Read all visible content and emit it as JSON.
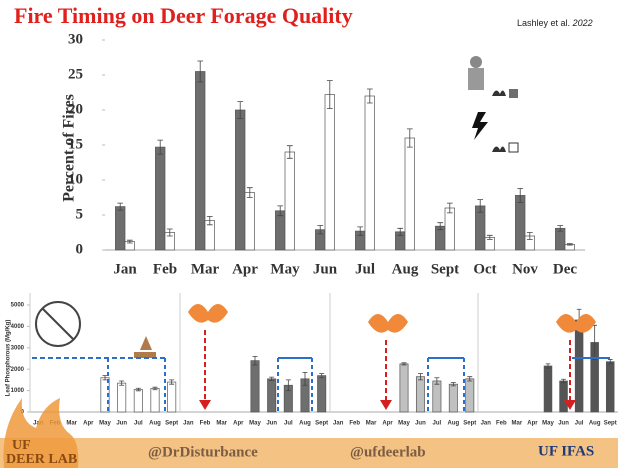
{
  "chart_data": [
    {
      "type": "bar",
      "title": "Fire Timing on Deer Forage Quality",
      "source": "Lashley et al.",
      "source_year": "2022",
      "y_label": "Percent of Fires",
      "categories": [
        "Jan",
        "Feb",
        "Mar",
        "Apr",
        "May",
        "Jun",
        "Jul",
        "Aug",
        "Sept",
        "Oct",
        "Nov",
        "Dec"
      ],
      "series": [
        {
          "color": "#6e6e6e",
          "values": [
            6.2,
            14.7,
            25.5,
            20,
            5.6,
            2.9,
            2.7,
            2.6,
            3.4,
            6.3,
            7.8,
            3.1
          ],
          "errors": [
            0.5,
            1,
            1.5,
            1.2,
            0.7,
            0.6,
            0.6,
            0.5,
            0.5,
            0.9,
            1,
            0.4
          ]
        },
        {
          "color": "#ffffff",
          "values": [
            1.2,
            2.5,
            4.2,
            8.2,
            14,
            22.2,
            22,
            16,
            6,
            1.8,
            2,
            0.8
          ],
          "errors": [
            0.2,
            0.5,
            0.6,
            0.7,
            0.9,
            2,
            1,
            1.3,
            0.7,
            0.3,
            0.5,
            0.1
          ]
        }
      ],
      "ylim": [
        0,
        30
      ],
      "yticks": [
        0,
        5,
        10,
        15,
        20,
        25,
        30
      ]
    },
    {
      "type": "bar",
      "y_label": "Leaf Phosphorous (Mg/Kg)",
      "categories": [
        "Jan",
        "Feb",
        "Mar",
        "Apr",
        "May",
        "Jun",
        "Jul",
        "Aug",
        "Sept"
      ],
      "color": "#ffffff",
      "values": [
        null,
        null,
        null,
        null,
        1600,
        1350,
        1050,
        1100,
        1400
      ],
      "errors": [
        null,
        null,
        null,
        null,
        100,
        100,
        60,
        60,
        100
      ],
      "ylim": [
        0,
        5000
      ],
      "yticks": [
        0,
        1000,
        2000,
        3000,
        4000,
        5000
      ]
    },
    {
      "type": "bar",
      "categories": [
        "Jan",
        "Feb",
        "Mar",
        "Apr",
        "May",
        "Jun",
        "Jul",
        "Aug",
        "Sept"
      ],
      "color": "#6e6e6e",
      "values": [
        null,
        null,
        null,
        null,
        2400,
        1550,
        1250,
        1550,
        1700
      ],
      "errors": [
        null,
        null,
        null,
        null,
        200,
        80,
        250,
        300,
        100
      ],
      "ylim": [
        0,
        5000
      ]
    },
    {
      "type": "bar",
      "categories": [
        "Jan",
        "Feb",
        "Mar",
        "Apr",
        "May",
        "Jun",
        "Jul",
        "Aug",
        "Sept"
      ],
      "color": "#c0c0c0",
      "values": [
        null,
        null,
        null,
        null,
        2250,
        1650,
        1450,
        1300,
        1550
      ],
      "errors": [
        null,
        null,
        null,
        null,
        50,
        150,
        150,
        80,
        100
      ],
      "ylim": [
        0,
        5000
      ]
    },
    {
      "type": "bar",
      "categories": [
        "Jan",
        "Feb",
        "Mar",
        "Apr",
        "May",
        "Jun",
        "Jul",
        "Aug",
        "Sept"
      ],
      "color": "#555555",
      "values": [
        null,
        null,
        null,
        null,
        2150,
        1450,
        4300,
        3250,
        2350
      ],
      "errors": [
        null,
        null,
        null,
        null,
        100,
        80,
        500,
        800,
        100
      ],
      "ylim": [
        0,
        5000
      ]
    }
  ],
  "footer": {
    "handle_left": "@DrDisturbance",
    "handle_right": "@ufdeerlab",
    "brand": "UF IFAS",
    "lab_top": "UF",
    "lab_bottom": "DEER LAB"
  }
}
